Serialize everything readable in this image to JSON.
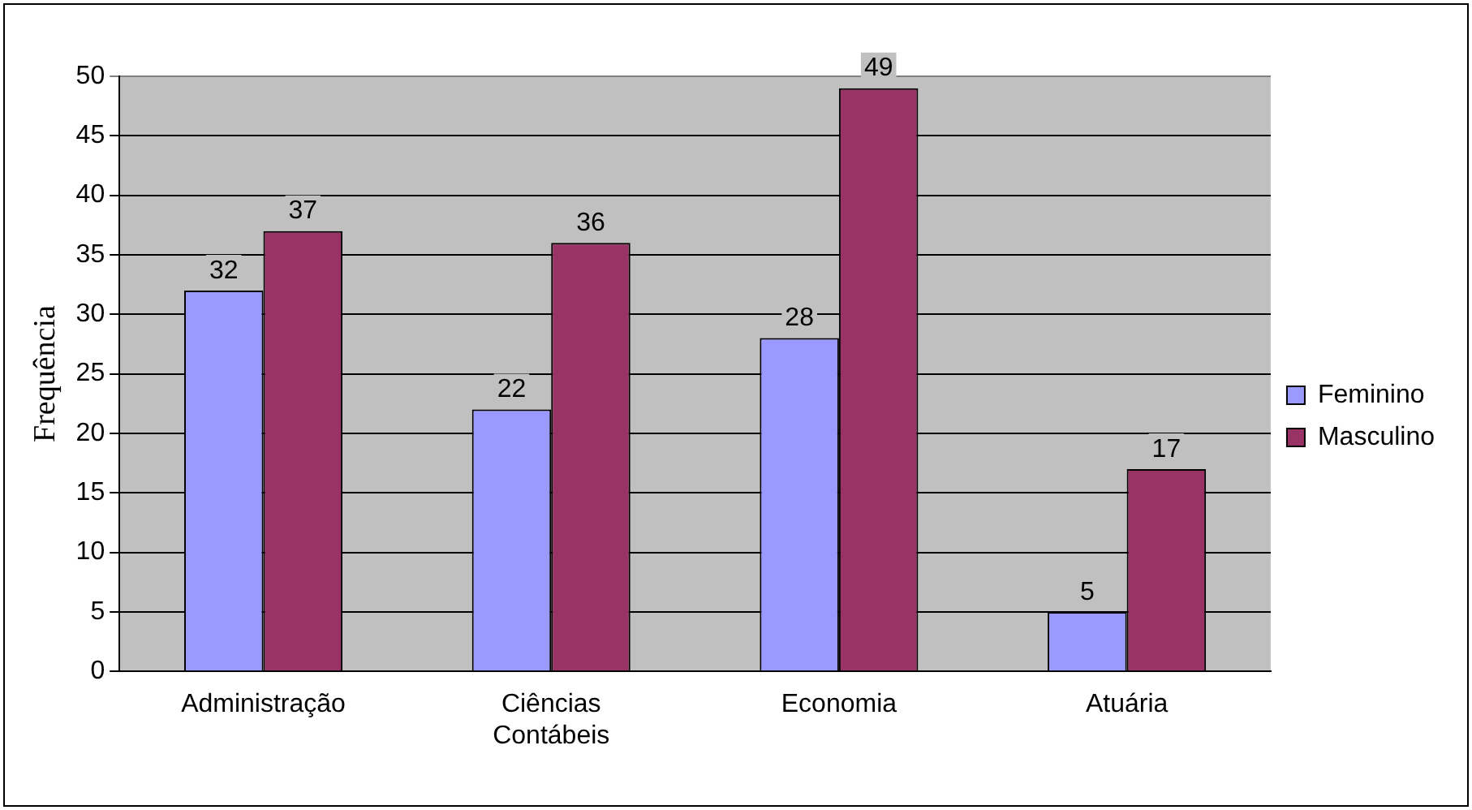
{
  "chart_data": {
    "type": "bar",
    "ylabel": "Frequência",
    "categories": [
      "Administração",
      "Ciências Contábeis",
      "Economia",
      "Atuária"
    ],
    "series": [
      {
        "name": "Feminino",
        "color": "#9999ff",
        "values": [
          32,
          22,
          28,
          5
        ]
      },
      {
        "name": "Masculino",
        "color": "#993366",
        "values": [
          37,
          36,
          49,
          17
        ]
      }
    ],
    "ylim": [
      0,
      50
    ],
    "yticks": [
      0,
      5,
      10,
      15,
      20,
      25,
      30,
      35,
      40,
      45,
      50
    ],
    "grid": "y",
    "legend": "right",
    "data_labels": true
  }
}
